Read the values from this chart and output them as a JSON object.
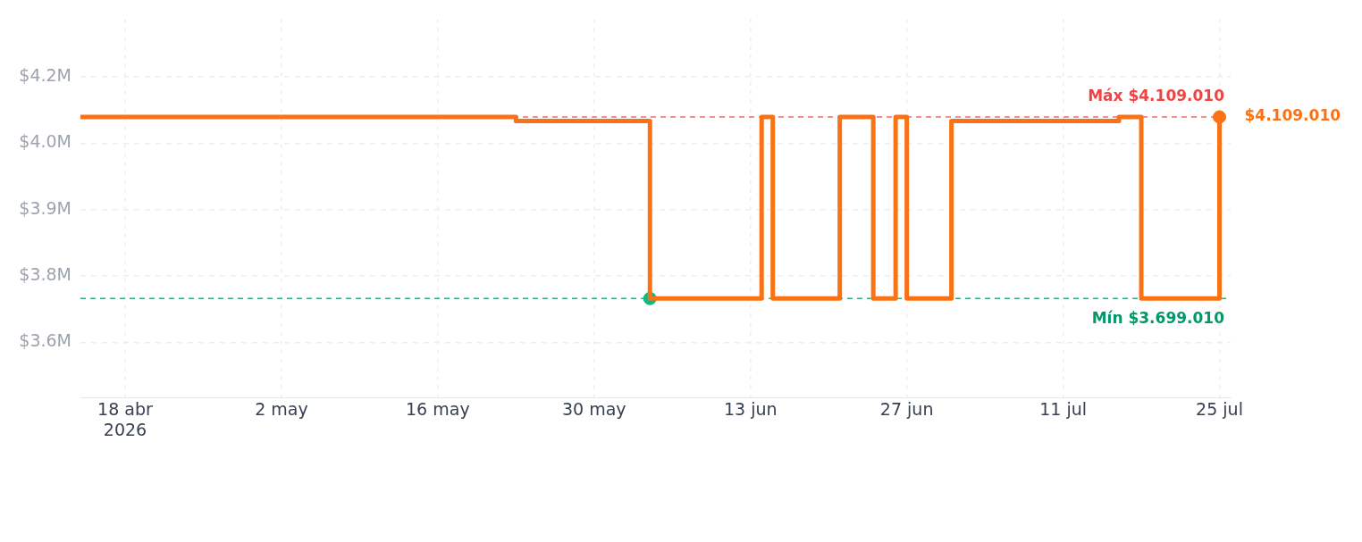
{
  "chart_data": {
    "type": "step",
    "xlim": [
      "2026-04-14",
      "2026-07-26"
    ],
    "xticks": [
      {
        "value": "2026-04-18",
        "label": "18 abr\n2026"
      },
      {
        "value": "2026-05-02",
        "label": "2 may"
      },
      {
        "value": "2026-05-16",
        "label": "16 may"
      },
      {
        "value": "2026-05-30",
        "label": "30 may"
      },
      {
        "value": "2026-06-13",
        "label": "13 jun"
      },
      {
        "value": "2026-06-27",
        "label": "27 jun"
      },
      {
        "value": "2026-07-11",
        "label": "11 jul"
      },
      {
        "value": "2026-07-25",
        "label": "25 jul"
      }
    ],
    "ylim": [
      3475000,
      4330000
    ],
    "yticks": [
      {
        "value": 3600000,
        "label": "$3.6M"
      },
      {
        "value": 3750000,
        "label": "$3.8M"
      },
      {
        "value": 3900000,
        "label": "$3.9M"
      },
      {
        "value": 4050000,
        "label": "$4.0M"
      },
      {
        "value": 4200000,
        "label": "$4.2M"
      }
    ],
    "grid": true,
    "legend": false,
    "series": [
      {
        "color": "#f97316",
        "marker": "none",
        "x": [
          "2026-04-14",
          "2026-05-23",
          "2026-06-04",
          "2026-06-14",
          "2026-06-15",
          "2026-06-21",
          "2026-06-24",
          "2026-06-26",
          "2026-06-27",
          "2026-07-01",
          "2026-07-16",
          "2026-07-18",
          "2026-07-25"
        ],
        "values": [
          4109010,
          4100000,
          3699010,
          4109010,
          3699010,
          4109010,
          3699010,
          4109010,
          3699010,
          4100000,
          4109010,
          3699010,
          4109010
        ]
      },
      {
        "type": "scatter",
        "color": "#10b981",
        "marker": "circle",
        "x": [
          "2026-06-04"
        ],
        "values": [
          3699010
        ]
      },
      {
        "type": "scatter",
        "color": "#f97316",
        "marker": "circle",
        "x": [
          "2026-07-25"
        ],
        "values": [
          4109010
        ]
      }
    ],
    "ref_lines": [
      {
        "axis": "y",
        "value": 4109010,
        "label": "Máx $4.109.010",
        "color": "#ef4444",
        "line_style": "dashed"
      },
      {
        "axis": "y",
        "value": 3699010,
        "label": "Mín $3.699.010",
        "color": "#059669",
        "line_style": "dashed"
      }
    ],
    "annotations": [
      {
        "text": "$4.109.010",
        "x": "2026-07-25",
        "y": 4109010
      }
    ]
  }
}
